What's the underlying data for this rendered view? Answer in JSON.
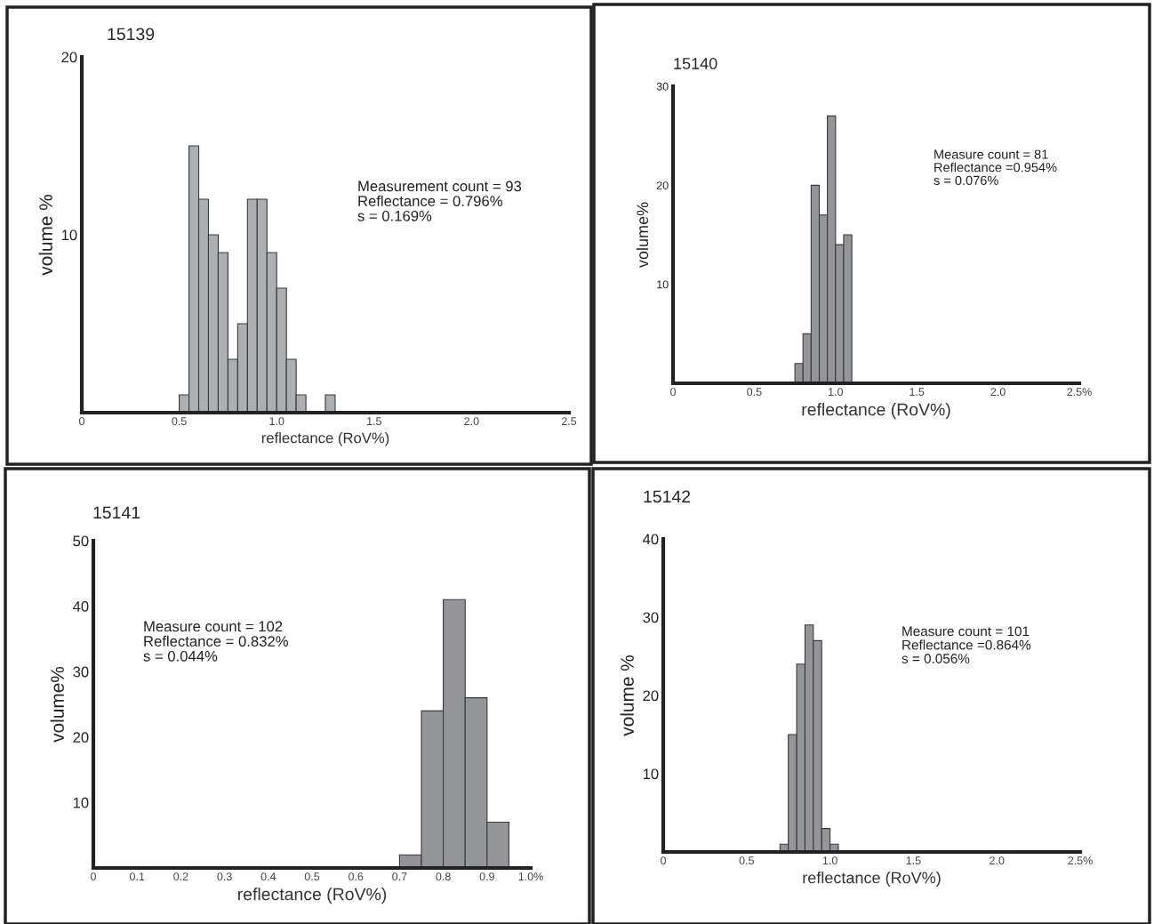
{
  "chart_data": [
    {
      "type": "histogram",
      "title": "15139",
      "xlabel": "reflectance (RoV%)",
      "ylabel": "volume %",
      "color": "#adb0b3",
      "bins": [
        0.5,
        0.55,
        0.6,
        0.65,
        0.7,
        0.75,
        0.8,
        0.85,
        0.9,
        0.95,
        1.0,
        1.05,
        1.1,
        1.15,
        1.2,
        1.25,
        1.3
      ],
      "values": [
        1,
        15,
        12,
        10,
        9,
        3,
        5,
        12,
        12,
        9,
        7,
        3,
        1,
        0,
        0,
        1
      ],
      "xlim": [
        0,
        2.5
      ],
      "xticks": [
        0,
        0.5,
        {
          "value": 1.0,
          "label": "1.0"
        },
        1.5,
        {
          "value": 2.0,
          "label": "2.0"
        },
        2.5
      ],
      "ylim": [
        0,
        20
      ],
      "yticks": [
        10,
        20
      ],
      "annotations": [
        "Measurement count = 93",
        "Reflectance = 0.796%",
        "s = 0.169%"
      ]
    },
    {
      "type": "histogram",
      "title": "15140",
      "xlabel": "reflectance (RoV%)",
      "ylabel": "volume%",
      "color": "#939598",
      "bins": [
        0.75,
        0.8,
        0.85,
        0.9,
        0.95,
        1.0,
        1.05,
        1.1
      ],
      "values": [
        2,
        5,
        20,
        17,
        27,
        14,
        15
      ],
      "xlim": [
        0,
        2.5
      ],
      "xticks": [
        0,
        0.5,
        {
          "value": 1.0,
          "label": "1.0"
        },
        1.5,
        {
          "value": 2.0,
          "label": "2.0"
        },
        {
          "value": 2.5,
          "label": "2.5%"
        }
      ],
      "ylim": [
        0,
        30
      ],
      "yticks": [
        10,
        20,
        30
      ],
      "annotations": [
        "Measure count = 81",
        "Reflectance =0.954%",
        "s = 0.076%"
      ]
    },
    {
      "type": "histogram",
      "title": "15141",
      "xlabel": "reflectance (RoV%)",
      "ylabel": "volume%",
      "color": "#939598",
      "bins": [
        0.7,
        0.75,
        0.8,
        0.85,
        0.9,
        0.95
      ],
      "values": [
        2,
        24,
        41,
        26,
        7
      ],
      "xlim": [
        0,
        1.0
      ],
      "xticks": [
        0,
        0.1,
        0.2,
        0.3,
        0.4,
        0.5,
        0.6,
        0.7,
        0.8,
        0.9,
        {
          "value": 1.0,
          "label": "1.0%"
        }
      ],
      "ylim": [
        0,
        50
      ],
      "yticks": [
        10,
        20,
        30,
        40,
        50
      ],
      "annotations": [
        "Measure count = 102",
        "Reflectance = 0.832%",
        "s = 0.044%"
      ]
    },
    {
      "type": "histogram",
      "title": "15142",
      "xlabel": "reflectance (RoV%)",
      "ylabel": "volume %",
      "color": "#939598",
      "bins": [
        0.7,
        0.75,
        0.8,
        0.85,
        0.9,
        0.95,
        1.0,
        1.05
      ],
      "values": [
        1,
        15,
        24,
        29,
        27,
        3,
        1
      ],
      "xlim": [
        0,
        2.5
      ],
      "xticks": [
        0,
        0.5,
        {
          "value": 1.0,
          "label": "1.0"
        },
        1.5,
        {
          "value": 2.0,
          "label": "2.0"
        },
        {
          "value": 2.5,
          "label": "2.5%"
        }
      ],
      "ylim": [
        0,
        40
      ],
      "yticks": [
        10,
        20,
        30,
        40
      ],
      "annotations": [
        "Measure count = 101",
        "Reflectance =0.864%",
        "s = 0.056%"
      ]
    }
  ]
}
